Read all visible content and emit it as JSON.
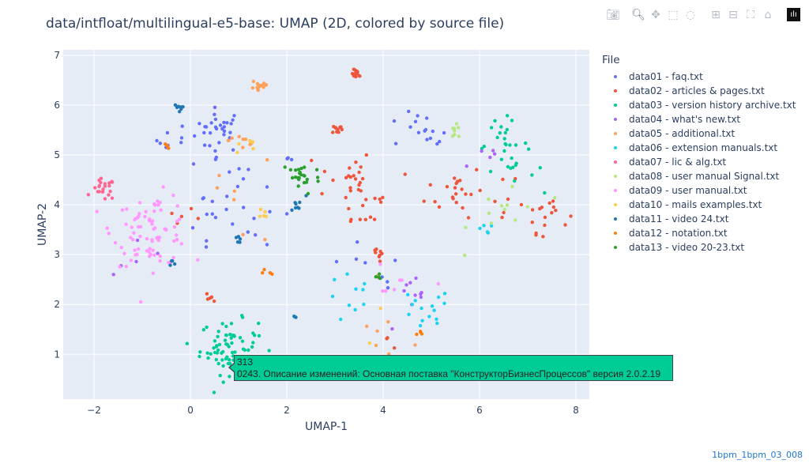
{
  "toolbar": {
    "icons": [
      "camera-icon",
      "zoom-icon",
      "pan-icon",
      "box-select-icon",
      "lasso-icon",
      "zoom-in-icon",
      "zoom-out-icon",
      "autoscale-icon",
      "home-icon",
      "plotly-logo-icon"
    ]
  },
  "tooltip": {
    "line1": "313",
    "line2": "0243. Описание изменений: Основная поставка \"КонструкторБизнесПроцессов\" версия 2.0.2.19",
    "color": "#00cc96"
  },
  "footer": "1bpm_1bpm_03_008",
  "chart_data": {
    "type": "scatter",
    "title": "data/intfloat/multilingual-e5-base: UMAP (2D, colored by source file)",
    "xlabel": "UMAP-1",
    "ylabel": "UMAP-2",
    "xlim": [
      -2.64,
      8.28
    ],
    "ylim": [
      0.1,
      7.11
    ],
    "xticks": [
      -2,
      0,
      2,
      4,
      6,
      8
    ],
    "xtick_labels": [
      "−2",
      "0",
      "2",
      "4",
      "6",
      "8"
    ],
    "yticks": [
      1,
      2,
      3,
      4,
      5,
      6,
      7
    ],
    "ytick_labels": [
      "1",
      "2",
      "3",
      "4",
      "5",
      "6",
      "7"
    ],
    "grid": true,
    "legend_title": "File",
    "legend_placement": "right",
    "series": [
      {
        "name": "data01 - faq.txt",
        "color": "#636efa",
        "clusters": [
          [
            0.6,
            5.5,
            0.25,
            30
          ],
          [
            -0.3,
            5.3,
            0.2,
            8
          ],
          [
            1.2,
            4.2,
            0.55,
            22
          ],
          [
            4.5,
            5.5,
            0.25,
            8
          ],
          [
            5.0,
            5.4,
            0.15,
            8
          ],
          [
            0.5,
            3.6,
            0.4,
            8
          ],
          [
            3.5,
            2.5,
            0.5,
            8
          ]
        ]
      },
      {
        "name": "data02 - articles & pages.txt",
        "color": "#EF553B",
        "clusters": [
          [
            3.45,
            6.62,
            0.05,
            12
          ],
          [
            3.05,
            5.52,
            0.05,
            10
          ],
          [
            3.2,
            4.6,
            0.3,
            20
          ],
          [
            3.6,
            4.0,
            0.3,
            15
          ],
          [
            3.95,
            3.0,
            0.12,
            8
          ],
          [
            5.5,
            4.3,
            0.3,
            22
          ],
          [
            7.4,
            3.85,
            0.22,
            15
          ],
          [
            6.5,
            3.9,
            0.3,
            8
          ],
          [
            0.45,
            2.15,
            0.06,
            6
          ],
          [
            -0.2,
            3.8,
            0.2,
            5
          ],
          [
            4.1,
            1.1,
            0.3,
            5
          ]
        ]
      },
      {
        "name": "data03 - version history archive.txt",
        "color": "#00cc96",
        "clusters": [
          [
            0.8,
            1.15,
            0.3,
            70
          ],
          [
            6.5,
            5.2,
            0.28,
            25
          ],
          [
            6.9,
            4.7,
            0.2,
            6
          ]
        ]
      },
      {
        "name": "data04 - what's new.txt",
        "color": "#ab63fa",
        "clusters": [
          [
            4.6,
            2.0,
            0.3,
            10
          ],
          [
            -1.0,
            3.1,
            0.3,
            5
          ],
          [
            6.0,
            4.8,
            0.3,
            5
          ]
        ]
      },
      {
        "name": "data05 - additional.txt",
        "color": "#FFA15A",
        "clusters": [
          [
            1.45,
            6.4,
            0.1,
            15
          ],
          [
            1.1,
            5.3,
            0.15,
            8
          ],
          [
            4.1,
            1.1,
            0.5,
            12
          ],
          [
            1.0,
            4.2,
            0.6,
            8
          ]
        ]
      },
      {
        "name": "data06 - extension manuals.txt",
        "color": "#19d3f3",
        "clusters": [
          [
            4.8,
            1.8,
            0.3,
            15
          ],
          [
            3.4,
            2.1,
            0.3,
            10
          ],
          [
            6.0,
            3.5,
            0.2,
            5
          ]
        ]
      },
      {
        "name": "data07 - lic & alg.txt",
        "color": "#FF6692",
        "clusters": [
          [
            -1.8,
            4.3,
            0.12,
            22
          ]
        ]
      },
      {
        "name": "data08 - user manual Signal.txt",
        "color": "#B6E880",
        "clusters": [
          [
            5.5,
            5.45,
            0.08,
            8
          ],
          [
            6.6,
            3.9,
            0.4,
            12
          ]
        ]
      },
      {
        "name": "data09 - user manual.txt",
        "color": "#FF97FF",
        "clusters": [
          [
            -0.8,
            3.5,
            0.4,
            80
          ],
          [
            4.2,
            2.2,
            0.3,
            8
          ]
        ]
      },
      {
        "name": "data10 - mails examples.txt",
        "color": "#FECB52",
        "clusters": [
          [
            1.1,
            5.2,
            0.15,
            6
          ],
          [
            1.5,
            3.8,
            0.08,
            5
          ],
          [
            4.0,
            1.3,
            0.4,
            6
          ]
        ]
      },
      {
        "name": "data11 - video 24.txt",
        "color": "#1f77b4",
        "clusters": [
          [
            -0.25,
            5.95,
            0.04,
            8
          ],
          [
            2.2,
            4.0,
            0.1,
            8
          ],
          [
            1.0,
            3.3,
            0.05,
            5
          ],
          [
            2.15,
            1.75,
            0.03,
            3
          ],
          [
            -0.4,
            2.8,
            0.05,
            4
          ]
        ]
      },
      {
        "name": "data12 - notation.txt",
        "color": "#ff7f0e",
        "clusters": [
          [
            -0.5,
            5.15,
            0.05,
            4
          ],
          [
            4.8,
            1.4,
            0.05,
            4
          ],
          [
            1.6,
            2.65,
            0.05,
            4
          ]
        ]
      },
      {
        "name": "data13 - video 20-23.txt",
        "color": "#2ca02c",
        "clusters": [
          [
            2.3,
            4.55,
            0.2,
            25
          ],
          [
            3.9,
            2.55,
            0.05,
            4
          ]
        ]
      }
    ]
  }
}
